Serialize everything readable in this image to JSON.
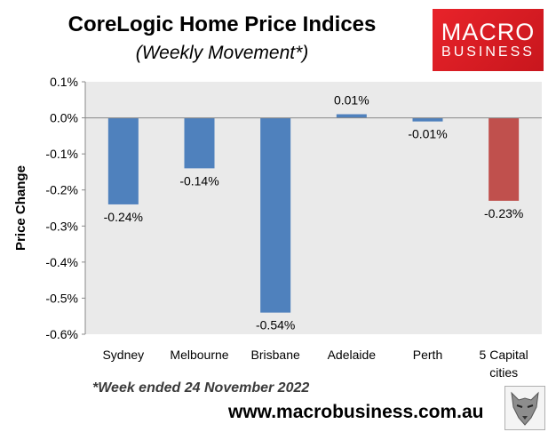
{
  "header": {
    "title": "CoreLogic Home Price Indices",
    "subtitle": "(Weekly Movement*)"
  },
  "logo": {
    "line1": "MACRO",
    "line2": "BUSINESS"
  },
  "footer": {
    "footnote": "*Week ended 24 November 2022",
    "website": "www.macrobusiness.com.au"
  },
  "colors": {
    "bar": "#4f81bd",
    "highlight": "#c0504d",
    "plot_bg": "#eaeaea"
  },
  "chart_data": {
    "type": "bar",
    "title": "CoreLogic Home Price Indices",
    "subtitle": "(Weekly Movement*)",
    "ylabel": "Price Change",
    "xlabel": "",
    "categories": [
      "Sydney",
      "Melbourne",
      "Brisbane",
      "Adelaide",
      "Perth",
      "5 Capital cities"
    ],
    "category_lines": [
      [
        "Sydney"
      ],
      [
        "Melbourne"
      ],
      [
        "Brisbane"
      ],
      [
        "Adelaide"
      ],
      [
        "Perth"
      ],
      [
        "5 Capital",
        "cities"
      ]
    ],
    "values": [
      -0.24,
      -0.14,
      -0.54,
      0.01,
      -0.01,
      -0.23
    ],
    "data_labels": [
      "-0.24%",
      "-0.14%",
      "-0.54%",
      "0.01%",
      "-0.01%",
      "-0.23%"
    ],
    "highlight_index": 5,
    "ylim": [
      -0.6,
      0.1
    ],
    "yticks": [
      0.1,
      0.0,
      -0.1,
      -0.2,
      -0.3,
      -0.4,
      -0.5,
      -0.6
    ],
    "ytick_labels": [
      "0.1%",
      "0.0%",
      "-0.1%",
      "-0.2%",
      "-0.3%",
      "-0.4%",
      "-0.5%",
      "-0.6%"
    ],
    "grid": false,
    "legend": "none"
  }
}
